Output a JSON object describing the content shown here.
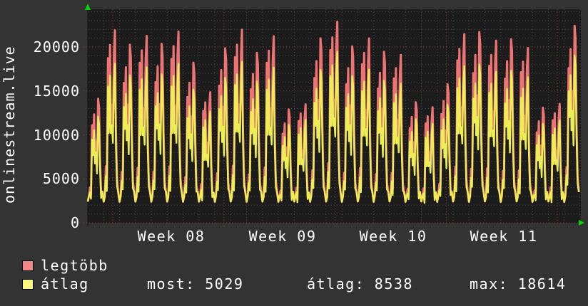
{
  "title_vertical": "onlinestream.live",
  "colors": {
    "background": "#333333",
    "plot_background": "#1c1c1c",
    "text": "#ffffff",
    "grid_minor": "#4a4a4a",
    "grid_major": "#8e3b3b",
    "axis": "#111111",
    "axis_arrow": "#00d800",
    "series_max": "#ee7474",
    "series_avg": "#eded55",
    "legend_max_swatch": "#f08888",
    "legend_avg_swatch": "#f8f880"
  },
  "chart_data": {
    "type": "line",
    "title": "onlinestream.live",
    "xlabel": "",
    "ylabel": "onlinestream.live",
    "ylim": [
      0,
      24300
    ],
    "y_major_ticks": [
      0,
      5000,
      10000,
      15000,
      20000
    ],
    "y_tick_labels": [
      "0",
      "5000",
      "10000",
      "15000",
      "20000"
    ],
    "y_minor_step": 1000,
    "x_week_labels": [
      "Week 08",
      "Week 09",
      "Week 10",
      "Week 11"
    ],
    "days_total": 31,
    "first_week_boundary_day": 1.571,
    "week_length_days": 7,
    "grid": "dotted, red major lines every 5000 and every week, gray minor lines every 1000 and every day",
    "legend_position": "bottom-left",
    "night_trough": 2400,
    "series": [
      {
        "name": "legtöbb",
        "color": "#ee7474",
        "daily_peaks": [
          13800,
          20900,
          19800,
          20300,
          19900,
          20800,
          17800,
          14200,
          19400,
          21000,
          18900,
          20300,
          12600,
          12900,
          20500,
          21900,
          19600,
          20100,
          19000,
          18300,
          13400,
          12600,
          15400,
          20600,
          21200,
          19900,
          20400,
          19100,
          12800,
          13000,
          21900
        ]
      },
      {
        "name": "átlag",
        "color": "#eded55",
        "daily_peaks": [
          11800,
          17300,
          16400,
          16900,
          16500,
          17300,
          14800,
          12100,
          16100,
          17500,
          15700,
          16900,
          10900,
          11200,
          17000,
          18614,
          16300,
          16700,
          15800,
          15200,
          11500,
          10800,
          13100,
          17100,
          17600,
          16500,
          16900,
          15900,
          11000,
          11200,
          18614
        ]
      }
    ]
  },
  "legend": {
    "items": [
      {
        "label": "legtöbb",
        "swatch": "#f08888"
      },
      {
        "label": "átlag",
        "swatch": "#f8f880"
      }
    ]
  },
  "stats": {
    "most": "most: 5029",
    "avg": "átlag: 8538",
    "max": "max: 18614"
  }
}
